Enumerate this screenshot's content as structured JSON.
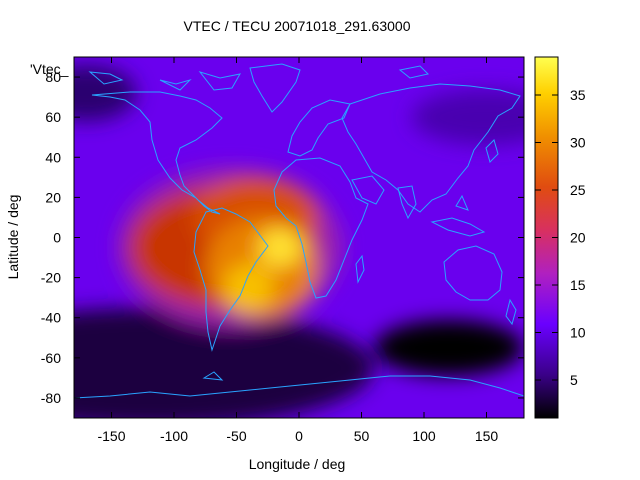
{
  "chart_data": {
    "type": "heatmap",
    "title": "VTEC / TECU 20071018_291.63000",
    "xlabel": "Longitude / deg",
    "ylabel": "Latitude / deg",
    "xlim": [
      -180,
      180
    ],
    "ylim": [
      -90,
      90
    ],
    "x_ticks": [
      -150,
      -100,
      -50,
      0,
      50,
      100,
      150
    ],
    "y_ticks": [
      -80,
      -60,
      -40,
      -20,
      0,
      20,
      40,
      60,
      80
    ],
    "colorbar": {
      "range": [
        1,
        39
      ],
      "ticks": [
        5,
        10,
        15,
        20,
        25,
        30,
        35
      ]
    },
    "colors": {
      "low": "#000000",
      "mid_low": "#5f00e6",
      "mid": "#c8327a",
      "mid_high": "#e05a00",
      "high": "#ffff40",
      "coast": "#29a3ff"
    },
    "legend_label": "'Vtec_",
    "overlay": "coastlines",
    "features": [
      {
        "name": "equatorial-anomaly-peak",
        "lon": -15,
        "lat": -5,
        "value": 34
      },
      {
        "name": "south-america-peak",
        "lon": -40,
        "lat": -25,
        "value": 30
      },
      {
        "name": "dayside-plateau",
        "lon": -90,
        "lat": 0,
        "value": 24
      },
      {
        "name": "southern-ocean-low",
        "lon": 140,
        "lat": -50,
        "value": 3
      }
    ]
  }
}
